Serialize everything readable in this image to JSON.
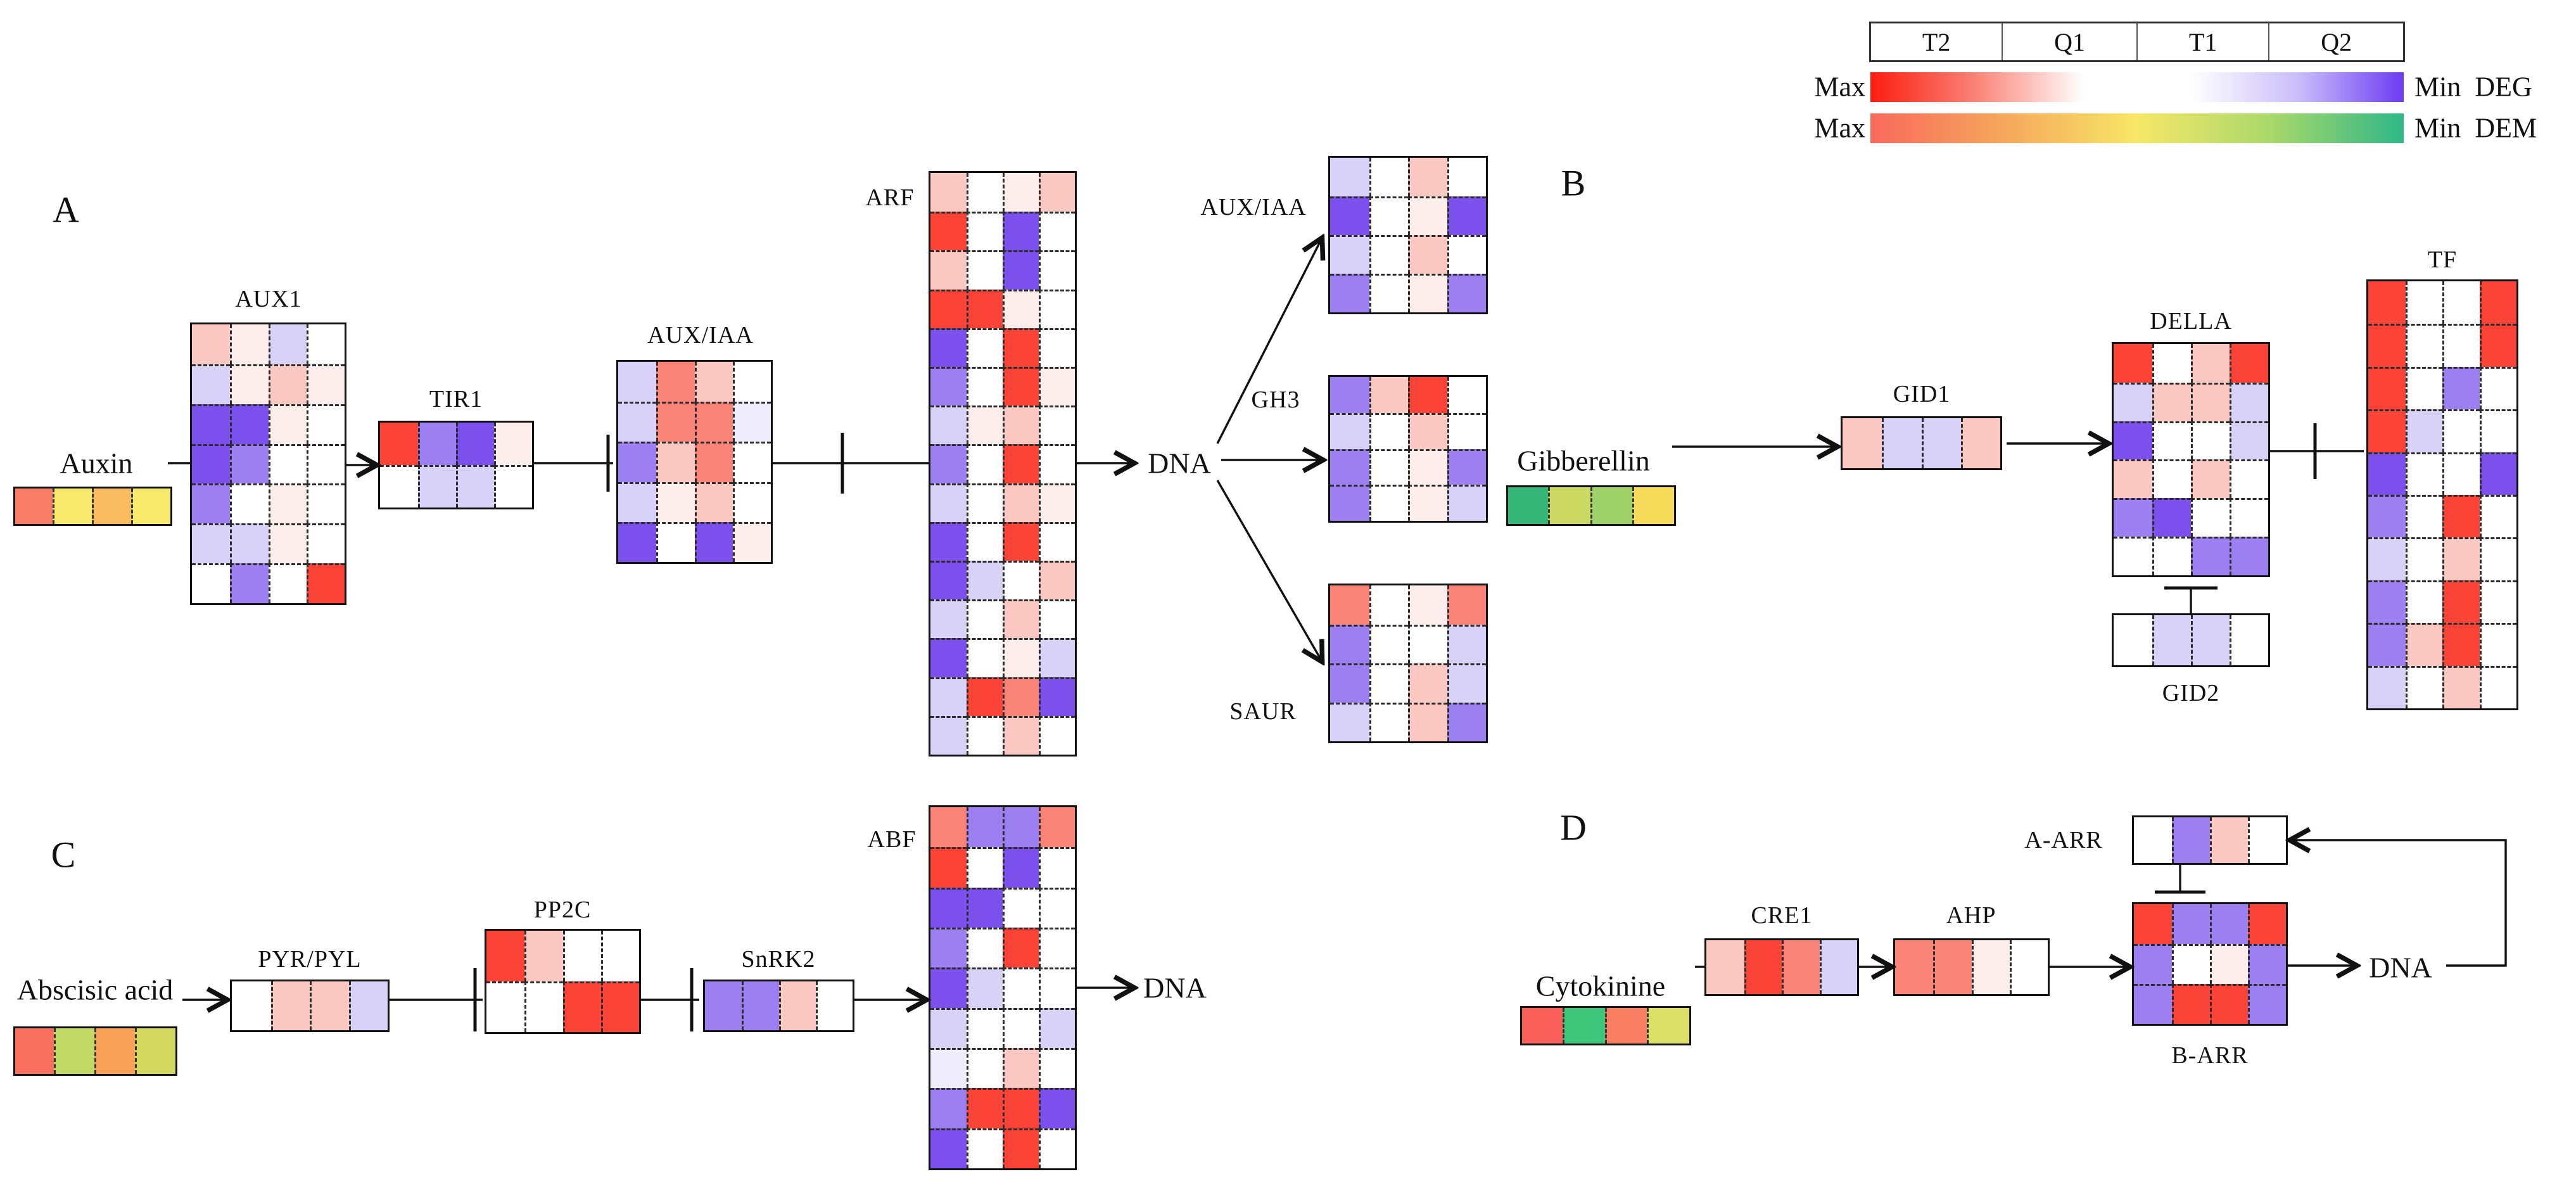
{
  "legend": {
    "columns": [
      "T2",
      "Q1",
      "T1",
      "Q2"
    ],
    "rows": [
      {
        "left": "Max",
        "right_min": "Min",
        "right_name": "DEG",
        "gradient": [
          "#fb1e10",
          "#fa8478",
          "#ffffff",
          "#ffffff",
          "#cabffa",
          "#6c3cf2"
        ]
      },
      {
        "left": "Max",
        "right_min": "Min",
        "right_name": "DEM",
        "gradient": [
          "#f9695c",
          "#f5a75c",
          "#f7e768",
          "#aad86b",
          "#2eb787"
        ]
      }
    ]
  },
  "palette": {
    "r4": "#fb4338",
    "r3": "#fa8478",
    "r2": "#fbc9c2",
    "r1": "#fdeeec",
    "w": "#ffffff",
    "p1": "#efecfc",
    "p2": "#d9d2f8",
    "p3": "#9c7ff0",
    "p4": "#7b50ec"
  },
  "panels": [
    {
      "id": "A",
      "label": "A",
      "dna": "DNA",
      "hormone": {
        "name": "Auxin",
        "strip": [
          "#f97d66",
          "#f7e96b",
          "#f9bc60",
          "#f7e96b"
        ]
      },
      "nodes": [
        {
          "id": "aux1",
          "title": "AUX1",
          "cells": [
            [
              "r2",
              "r1",
              "p2",
              "w"
            ],
            [
              "p2",
              "r1",
              "r2",
              "r1"
            ],
            [
              "p4",
              "p4",
              "r1",
              "w"
            ],
            [
              "p4",
              "p3",
              "w",
              "w"
            ],
            [
              "p3",
              "w",
              "r1",
              "w"
            ],
            [
              "p2",
              "p2",
              "r1",
              "w"
            ],
            [
              "w",
              "p3",
              "w",
              "r4"
            ]
          ]
        },
        {
          "id": "tir1",
          "title": "TIR1",
          "cells": [
            [
              "r4",
              "p3",
              "p4",
              "r1"
            ],
            [
              "w",
              "p2",
              "p2",
              "w"
            ]
          ]
        },
        {
          "id": "auxiaa",
          "title": "AUX/IAA",
          "cells": [
            [
              "p2",
              "r3",
              "r2",
              "w"
            ],
            [
              "p2",
              "r3",
              "r3",
              "p1"
            ],
            [
              "p3",
              "r2",
              "r3",
              "w"
            ],
            [
              "p2",
              "r1",
              "r2",
              "w"
            ],
            [
              "p4",
              "w",
              "p4",
              "r1"
            ]
          ]
        },
        {
          "id": "arf",
          "title": "ARF",
          "cells": [
            [
              "r2",
              "w",
              "r1",
              "r2"
            ],
            [
              "r4",
              "w",
              "p4",
              "w"
            ],
            [
              "r2",
              "w",
              "p4",
              "w"
            ],
            [
              "r4",
              "r4",
              "r1",
              "w"
            ],
            [
              "p4",
              "w",
              "r4",
              "w"
            ],
            [
              "p3",
              "w",
              "r4",
              "r1"
            ],
            [
              "p2",
              "r1",
              "r2",
              "w"
            ],
            [
              "p3",
              "w",
              "r4",
              "w"
            ],
            [
              "p2",
              "w",
              "r2",
              "r1"
            ],
            [
              "p4",
              "w",
              "r4",
              "w"
            ],
            [
              "p4",
              "p2",
              "w",
              "r2"
            ],
            [
              "p2",
              "w",
              "r2",
              "w"
            ],
            [
              "p4",
              "w",
              "r1",
              "p2"
            ],
            [
              "p2",
              "r4",
              "r3",
              "p4"
            ],
            [
              "p2",
              "w",
              "r2",
              "w"
            ]
          ]
        },
        {
          "id": "auxiaa_target",
          "title": "AUX/IAA",
          "cells": [
            [
              "p2",
              "w",
              "r2",
              "w"
            ],
            [
              "p4",
              "w",
              "r1",
              "p4"
            ],
            [
              "p2",
              "w",
              "r2",
              "w"
            ],
            [
              "p3",
              "w",
              "r1",
              "p3"
            ]
          ]
        },
        {
          "id": "gh3",
          "title": "GH3",
          "cells": [
            [
              "p3",
              "r2",
              "r4",
              "w"
            ],
            [
              "p2",
              "w",
              "r2",
              "w"
            ],
            [
              "p3",
              "w",
              "r1",
              "p3"
            ],
            [
              "p3",
              "w",
              "r1",
              "p2"
            ]
          ]
        },
        {
          "id": "saur",
          "title": "SAUR",
          "cells": [
            [
              "r3",
              "w",
              "r1",
              "r3"
            ],
            [
              "p3",
              "w",
              "w",
              "p2"
            ],
            [
              "p3",
              "w",
              "r2",
              "p2"
            ],
            [
              "p2",
              "w",
              "r2",
              "p3"
            ]
          ]
        }
      ]
    },
    {
      "id": "B",
      "label": "B",
      "hormone": {
        "name": "Gibberellin",
        "strip": [
          "#35b576",
          "#ccd963",
          "#9fd36a",
          "#f7dc5b"
        ]
      },
      "nodes": [
        {
          "id": "gid1",
          "title": "GID1",
          "cells": [
            [
              "r2",
              "p2",
              "p2",
              "r2"
            ]
          ]
        },
        {
          "id": "della",
          "title": "DELLA",
          "cells": [
            [
              "r4",
              "w",
              "r2",
              "r4"
            ],
            [
              "p2",
              "r2",
              "r2",
              "p2"
            ],
            [
              "p4",
              "w",
              "w",
              "p2"
            ],
            [
              "r2",
              "w",
              "r2",
              "w"
            ],
            [
              "p3",
              "p4",
              "w",
              "w"
            ],
            [
              "w",
              "w",
              "p3",
              "p3"
            ]
          ]
        },
        {
          "id": "gid2",
          "title": "GID2",
          "cells": [
            [
              "w",
              "p2",
              "p2",
              "w"
            ]
          ]
        },
        {
          "id": "tf",
          "title": "TF",
          "cells": [
            [
              "r4",
              "w",
              "w",
              "r4"
            ],
            [
              "r4",
              "w",
              "w",
              "r4"
            ],
            [
              "r4",
              "w",
              "p3",
              "w"
            ],
            [
              "r4",
              "p2",
              "w",
              "w"
            ],
            [
              "p4",
              "w",
              "w",
              "p4"
            ],
            [
              "p3",
              "w",
              "r4",
              "w"
            ],
            [
              "p2",
              "w",
              "r2",
              "w"
            ],
            [
              "p3",
              "w",
              "r4",
              "w"
            ],
            [
              "p3",
              "r2",
              "r4",
              "w"
            ],
            [
              "p2",
              "w",
              "r2",
              "w"
            ]
          ]
        }
      ]
    },
    {
      "id": "C",
      "label": "C",
      "dna": "DNA",
      "hormone": {
        "name": "Abscisic acid",
        "strip": [
          "#f9705f",
          "#c3d966",
          "#f9a257",
          "#d3d95f"
        ]
      },
      "nodes": [
        {
          "id": "pyrpyl",
          "title": "PYR/PYL",
          "cells": [
            [
              "w",
              "r2",
              "r2",
              "p2"
            ]
          ]
        },
        {
          "id": "pp2c",
          "title": "PP2C",
          "cells": [
            [
              "r4",
              "r2",
              "w",
              "w"
            ],
            [
              "w",
              "w",
              "r4",
              "r4"
            ]
          ]
        },
        {
          "id": "snrk2",
          "title": "SnRK2",
          "cells": [
            [
              "p3",
              "p3",
              "r2",
              "w"
            ]
          ]
        },
        {
          "id": "abf",
          "title": "ABF",
          "cells": [
            [
              "r3",
              "p3",
              "p3",
              "r3"
            ],
            [
              "r4",
              "w",
              "p4",
              "w"
            ],
            [
              "p4",
              "p4",
              "w",
              "w"
            ],
            [
              "p3",
              "w",
              "r4",
              "w"
            ],
            [
              "p4",
              "p2",
              "w",
              "w"
            ],
            [
              "p2",
              "w",
              "w",
              "p2"
            ],
            [
              "p1",
              "w",
              "r2",
              "w"
            ],
            [
              "p3",
              "r4",
              "r4",
              "p4"
            ],
            [
              "p4",
              "w",
              "r4",
              "w"
            ]
          ]
        }
      ]
    },
    {
      "id": "D",
      "label": "D",
      "dna": "DNA",
      "hormone": {
        "name": "Cytokinine",
        "strip": [
          "#f9605a",
          "#3dc579",
          "#f97f63",
          "#dcdf67"
        ]
      },
      "nodes": [
        {
          "id": "cre1",
          "title": "CRE1",
          "cells": [
            [
              "r2",
              "r4",
              "r3",
              "p2"
            ]
          ]
        },
        {
          "id": "ahp",
          "title": "AHP",
          "cells": [
            [
              "r3",
              "r3",
              "r1",
              "w"
            ]
          ]
        },
        {
          "id": "aarr",
          "title": "A-ARR",
          "cells": [
            [
              "w",
              "p3",
              "r2",
              "w"
            ]
          ]
        },
        {
          "id": "barr",
          "title": "B-ARR",
          "cells": [
            [
              "r4",
              "p3",
              "p3",
              "r4"
            ],
            [
              "p3",
              "w",
              "r1",
              "p3"
            ],
            [
              "p3",
              "r4",
              "r4",
              "p3"
            ]
          ]
        }
      ]
    }
  ]
}
